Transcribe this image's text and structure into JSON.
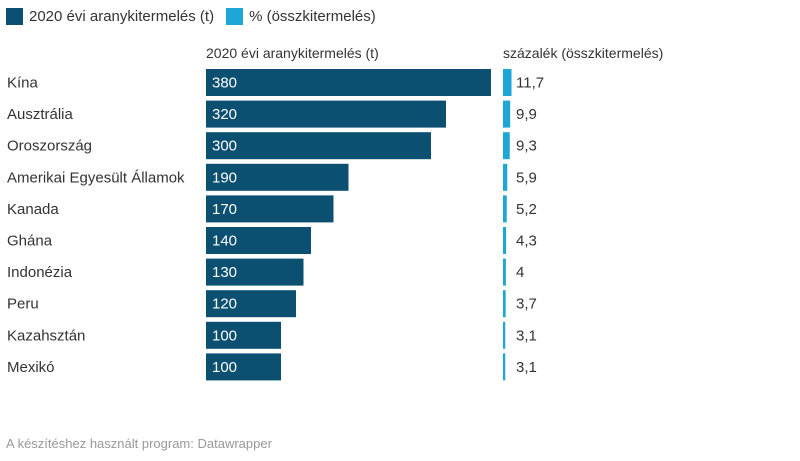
{
  "legend": {
    "items": [
      {
        "label": "2020 évi aranykitermelés (t)",
        "color": "#0b4f71"
      },
      {
        "label": "% (összkitermelés)",
        "color": "#1ea7d6"
      }
    ]
  },
  "headers": {
    "left": "2020 évi aranykitermelés (t)",
    "right": "százalék (összkitermelés)"
  },
  "footer": "A készítéshez használt program: Datawrapper",
  "chart_data": {
    "type": "bar",
    "categories": [
      "Kína",
      "Ausztrália",
      "Oroszország",
      "Amerikai Egyesült Államok",
      "Kanada",
      "Ghána",
      "Indonézia",
      "Peru",
      "Kazahsztán",
      "Mexikó"
    ],
    "series": [
      {
        "name": "2020 évi aranykitermelés (t)",
        "values": [
          380,
          320,
          300,
          190,
          170,
          140,
          130,
          120,
          100,
          100
        ],
        "labels": [
          "380",
          "320",
          "300",
          "190",
          "170",
          "140",
          "130",
          "120",
          "100",
          "100"
        ],
        "color": "#0b4f71"
      },
      {
        "name": "% (összkitermelés)",
        "values": [
          11.7,
          9.9,
          9.3,
          5.9,
          5.2,
          4.3,
          4,
          3.7,
          3.1,
          3.1
        ],
        "labels": [
          "11,7",
          "9,9",
          "9,3",
          "5,9",
          "5,2",
          "4,3",
          "4",
          "3,7",
          "3,1",
          "3,1"
        ],
        "color": "#1ea7d6"
      }
    ]
  }
}
